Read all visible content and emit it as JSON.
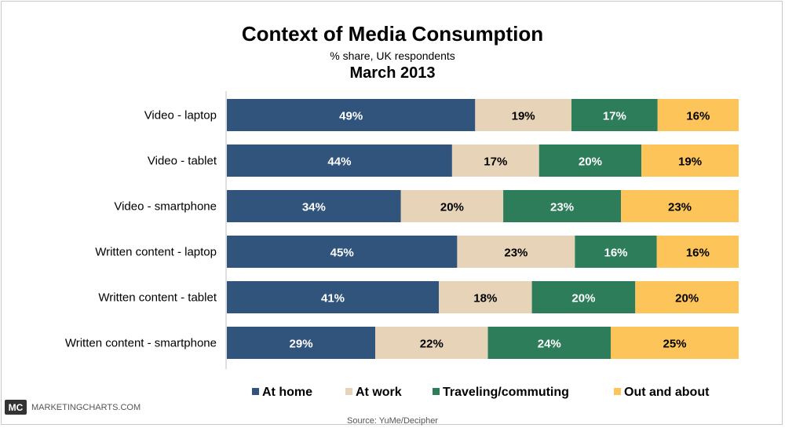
{
  "chart_data": {
    "type": "bar",
    "orientation": "horizontal",
    "stacked": true,
    "title": "Context of Media Consumption",
    "subtitle": "% share, UK respondents",
    "date": "March 2013",
    "categories": [
      "Video - laptop",
      "Video - tablet",
      "Video - smartphone",
      "Written content - laptop",
      "Written content - tablet",
      "Written content - smartphone"
    ],
    "series": [
      {
        "name": "At home",
        "color": "#30547c",
        "label_color": "#ffffff",
        "values": [
          49,
          44,
          34,
          45,
          41,
          29
        ]
      },
      {
        "name": "At work",
        "color": "#e7d4b8",
        "label_color": "#000000",
        "values": [
          19,
          17,
          20,
          23,
          18,
          22
        ]
      },
      {
        "name": "Traveling/commuting",
        "color": "#2d7d5b",
        "label_color": "#ffffff",
        "values": [
          17,
          20,
          23,
          16,
          20,
          24
        ]
      },
      {
        "name": "Out and about",
        "color": "#fcc459",
        "label_color": "#000000",
        "values": [
          16,
          19,
          23,
          16,
          20,
          25
        ]
      }
    ],
    "value_suffix": "%",
    "legend_position": "bottom"
  },
  "branding": {
    "logo_text": "MC",
    "site": "MARKETINGCHARTS.COM"
  },
  "source": "Source: YuMe/Decipher"
}
